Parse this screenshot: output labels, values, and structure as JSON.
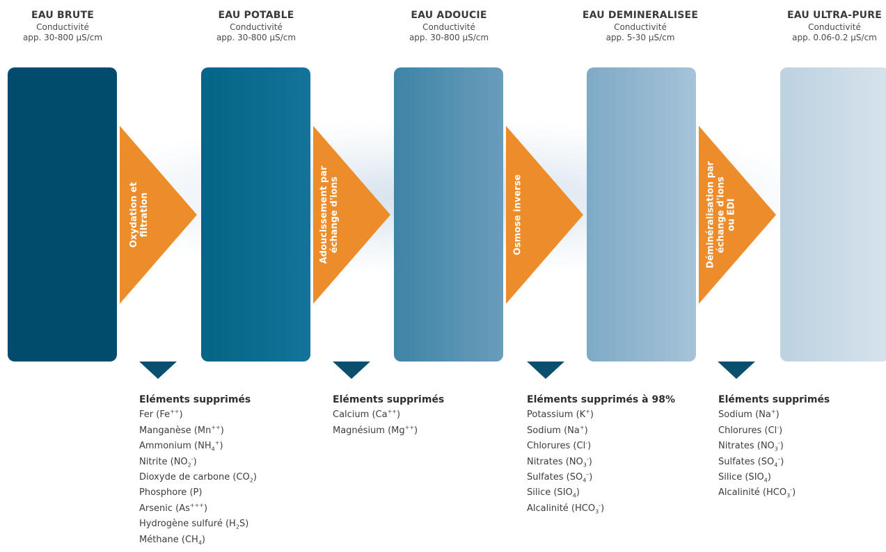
{
  "stages": [
    {
      "title": "EAU BRUTE",
      "sub1": "Conductivité",
      "sub2": "app. 30-800 µS/cm"
    },
    {
      "title": "EAU POTABLE",
      "sub1": "Conductivité",
      "sub2": "app. 30-800 µS/cm"
    },
    {
      "title": "EAU ADOUCIE",
      "sub1": "Conductivité",
      "sub2": "app. 30-800 µS/cm"
    },
    {
      "title": "EAU DEMINERALISEE",
      "sub1": "Conductivité",
      "sub2": "app. 5-30 µS/cm"
    },
    {
      "title": "EAU ULTRA-PURE",
      "sub1": "Conductivité",
      "sub2": "app. 0.06-0.2 µS/cm"
    }
  ],
  "processes": [
    {
      "lines": [
        "Oxydation et",
        "filtration"
      ]
    },
    {
      "lines": [
        "Adoucissement par",
        "échange d'ions"
      ]
    },
    {
      "lines": [
        "Osmose inverse"
      ]
    },
    {
      "lines": [
        "Déminéralisation par",
        "échange d'ions",
        "ou EDI"
      ]
    }
  ],
  "removed": [
    {
      "title": "Eléments supprimés",
      "items": [
        "Fer (Fe++)",
        "Manganèse (Mn++)",
        "Ammonium (NH4+)",
        "Nitrite (NO2-)",
        "Dioxyde de carbone (CO2)",
        "Phosphore (P)",
        "Arsenic (As+++)",
        "Hydrogène sulfuré (H2S)",
        "Méthane (CH4)"
      ]
    },
    {
      "title": "Eléments supprimés",
      "items": [
        "Calcium (Ca++)",
        "Magnésium (Mg++)"
      ]
    },
    {
      "title": "Eléments supprimés à 98%",
      "items": [
        "Potassium (K+)",
        "Sodium (Na+)",
        "Chlorures (Cl-)",
        "Nitrates (NO3-)",
        "Sulfates (SO4--)",
        "Silice (SIO4)",
        "Alcalinité (HCO3-)"
      ]
    },
    {
      "title": "Eléments supprimés",
      "items": [
        "Sodium (Na+)",
        "Chlorures (Cl-)",
        "Nitrates (NO3-)",
        "Sulfates (SO4--)",
        "Silice (SIO4)",
        "Alcalinité (HCO3-)"
      ]
    }
  ],
  "colors": {
    "arrow": "#ec8c2b",
    "down_marker": "#0a4f6e",
    "boxes": [
      [
        "#014c6c",
        "#014c6c"
      ],
      [
        "#056585",
        "#137399"
      ],
      [
        "#3e84a6",
        "#6a9cbb"
      ],
      [
        "#7eaac7",
        "#a6c3d8"
      ],
      [
        "#bdd1e1",
        "#d6e3ec"
      ]
    ]
  }
}
